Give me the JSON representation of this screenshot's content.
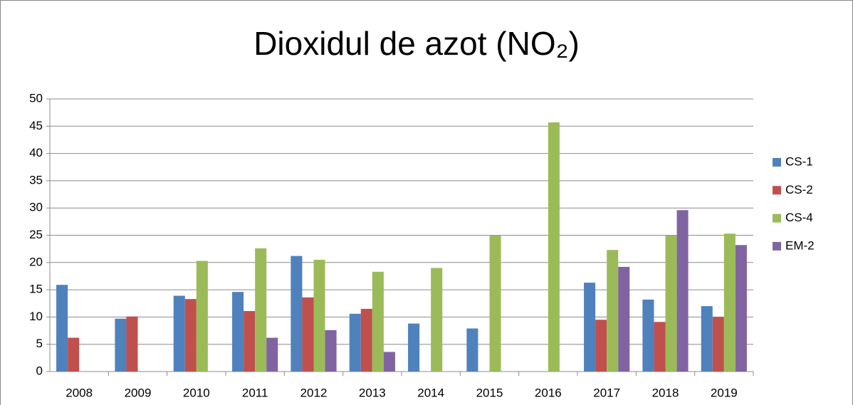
{
  "chart_data": {
    "type": "bar",
    "title": "Dioxidul de azot (NO₂)",
    "categories": [
      "2008",
      "2009",
      "2010",
      "2011",
      "2012",
      "2013",
      "2014",
      "2015",
      "2016",
      "2017",
      "2018",
      "2019"
    ],
    "series": [
      {
        "name": "CS-1",
        "color": "#4f81bd",
        "values": [
          15.9,
          9.7,
          13.9,
          14.6,
          21.2,
          10.6,
          8.8,
          7.9,
          null,
          16.3,
          13.2,
          12.0
        ]
      },
      {
        "name": "CS-2",
        "color": "#c0504d",
        "values": [
          6.2,
          10.1,
          13.3,
          11.1,
          13.6,
          11.5,
          null,
          null,
          null,
          9.5,
          9.1,
          10.0
        ]
      },
      {
        "name": "CS-4",
        "color": "#9bbb59",
        "values": [
          null,
          null,
          20.3,
          22.6,
          20.5,
          18.3,
          19.0,
          25.0,
          45.7,
          22.3,
          25.0,
          25.3
        ]
      },
      {
        "name": "EM-2",
        "color": "#8064a2",
        "values": [
          null,
          null,
          null,
          6.2,
          7.6,
          3.6,
          null,
          null,
          null,
          19.2,
          29.6,
          23.2
        ]
      }
    ],
    "ylim": [
      0,
      50
    ],
    "yticks": [
      0,
      5,
      10,
      15,
      20,
      25,
      30,
      35,
      40,
      45,
      50
    ],
    "grid": true,
    "legend": "right"
  }
}
